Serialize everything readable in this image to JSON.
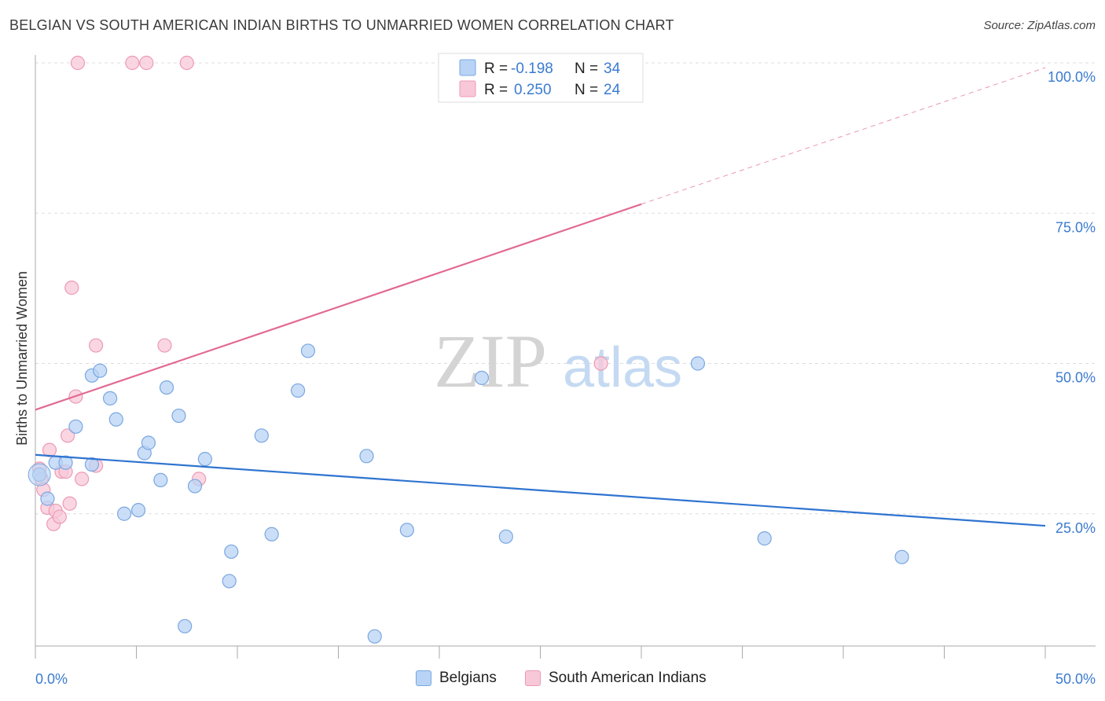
{
  "header": {
    "title": "BELGIAN VS SOUTH AMERICAN INDIAN BIRTHS TO UNMARRIED WOMEN CORRELATION CHART",
    "source": "Source: ZipAtlas.com"
  },
  "watermark": {
    "zip": "ZIP",
    "atlas": "atlas"
  },
  "legend": {
    "rows": [
      {
        "r_label": "R =",
        "r_value": "-0.198",
        "n_label": "N =",
        "n_value": "34"
      },
      {
        "r_label": "R =",
        "r_value": "0.250",
        "n_label": "N =",
        "n_value": "24"
      }
    ]
  },
  "bottom_legend": {
    "items": [
      "Belgians",
      "South American Indians"
    ]
  },
  "colors": {
    "blue_fill": "#b8d3f5",
    "blue_stroke": "#7aa7e0",
    "blue_line": "#2f74d0",
    "pink_fill": "#f8c8d8",
    "pink_stroke": "#ec9ab4",
    "pink_line": "#e26a92",
    "tick": "#3b7bd0",
    "grid": "#dddddd"
  },
  "chart_data": {
    "type": "scatter",
    "title": "BELGIAN VS SOUTH AMERICAN INDIAN BIRTHS TO UNMARRIED WOMEN CORRELATION CHART",
    "xlabel": "",
    "ylabel": "Births to Unmarried Women",
    "xlim": [
      0,
      50
    ],
    "ylim": [
      0,
      100
    ],
    "x_tick_labels": [
      "0.0%",
      "50.0%"
    ],
    "y_ticks": [
      25,
      50,
      75,
      100
    ],
    "y_tick_labels": [
      "25.0%",
      "50.0%",
      "75.0%",
      "100.0%"
    ],
    "series": [
      {
        "name": "Belgians",
        "r": -0.198,
        "n": 34,
        "points": [
          [
            0.2,
            31.5
          ],
          [
            0.6,
            27.5
          ],
          [
            1.0,
            33.5
          ],
          [
            1.5,
            33.5
          ],
          [
            2.0,
            39.5
          ],
          [
            2.8,
            33.2
          ],
          [
            2.8,
            48.0
          ],
          [
            3.2,
            48.8
          ],
          [
            3.7,
            44.2
          ],
          [
            4.0,
            40.7
          ],
          [
            4.4,
            25.0
          ],
          [
            5.1,
            25.6
          ],
          [
            5.4,
            35.1
          ],
          [
            5.6,
            36.8
          ],
          [
            6.2,
            30.6
          ],
          [
            6.5,
            46.0
          ],
          [
            7.1,
            41.3
          ],
          [
            7.4,
            6.3
          ],
          [
            7.9,
            29.6
          ],
          [
            8.4,
            34.1
          ],
          [
            9.6,
            13.8
          ],
          [
            9.7,
            18.7
          ],
          [
            11.2,
            38.0
          ],
          [
            11.7,
            21.6
          ],
          [
            13.0,
            45.5
          ],
          [
            13.5,
            52.1
          ],
          [
            16.4,
            34.6
          ],
          [
            16.8,
            4.6
          ],
          [
            18.4,
            22.3
          ],
          [
            22.1,
            47.6
          ],
          [
            23.3,
            21.2
          ],
          [
            32.8,
            50.0
          ],
          [
            36.1,
            20.9
          ],
          [
            42.9,
            17.8
          ]
        ],
        "trend": {
          "x": [
            0,
            50
          ],
          "y": [
            34.8,
            23.0
          ]
        }
      },
      {
        "name": "South American Indians",
        "r": 0.25,
        "n": 24,
        "points": [
          [
            0.2,
            32.5
          ],
          [
            0.3,
            30.8
          ],
          [
            0.4,
            29.0
          ],
          [
            0.6,
            26.0
          ],
          [
            0.7,
            35.6
          ],
          [
            0.9,
            23.3
          ],
          [
            1.0,
            25.5
          ],
          [
            1.2,
            24.5
          ],
          [
            1.3,
            32.0
          ],
          [
            1.5,
            32.0
          ],
          [
            1.6,
            38.0
          ],
          [
            1.7,
            26.7
          ],
          [
            1.8,
            62.6
          ],
          [
            2.0,
            44.5
          ],
          [
            2.3,
            30.8
          ],
          [
            2.1,
            100.0
          ],
          [
            3.0,
            33.0
          ],
          [
            3.0,
            53.0
          ],
          [
            4.8,
            100.0
          ],
          [
            5.5,
            100.0
          ],
          [
            6.4,
            53.0
          ],
          [
            7.5,
            100.0
          ],
          [
            8.1,
            30.8
          ],
          [
            28.0,
            50.0
          ]
        ],
        "trend": {
          "x": [
            0,
            30
          ],
          "y": [
            42.3,
            76.5
          ]
        },
        "trend_extension": {
          "x": [
            30,
            50
          ],
          "y": [
            76.5,
            99.2
          ]
        }
      }
    ]
  }
}
